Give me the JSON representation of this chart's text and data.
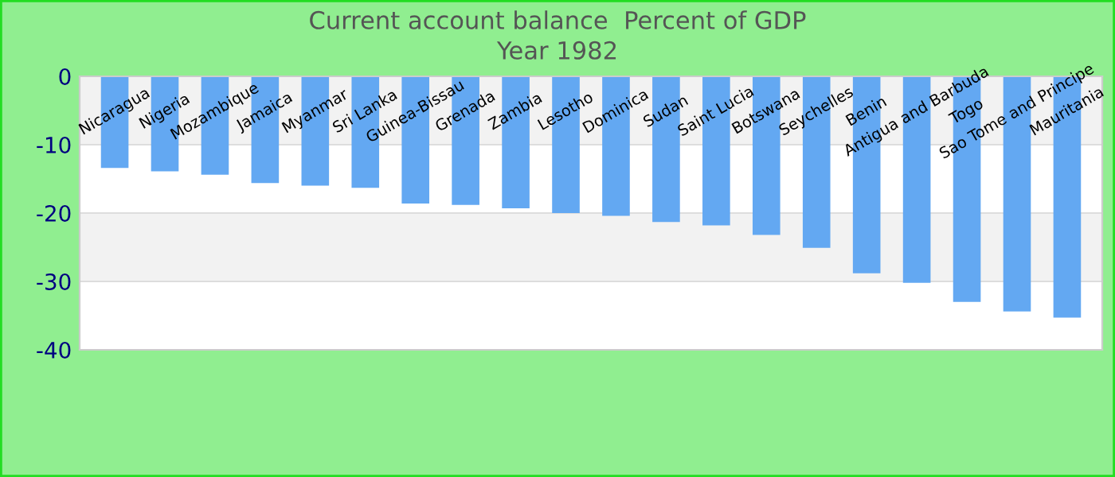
{
  "chart_data": {
    "type": "bar",
    "title": "Current account balance  Percent of GDP",
    "subtitle": "Year 1982",
    "categories": [
      "Nicaragua",
      "Nigeria",
      "Mozambique",
      "Jamaica",
      "Myanmar",
      "Sri Lanka",
      "Guinea-Bissau",
      "Grenada",
      "Zambia",
      "Lesotho",
      "Dominica",
      "Sudan",
      "Saint Lucia",
      "Botswana",
      "Seychelles",
      "Benin",
      "Antigua and Barbuda",
      "Togo",
      "Sao Tome and Principe",
      "Mauritania"
    ],
    "values": [
      -13.4,
      -13.9,
      -14.4,
      -15.6,
      -16.0,
      -16.3,
      -18.6,
      -18.8,
      -19.3,
      -20.0,
      -20.4,
      -21.3,
      -21.8,
      -23.2,
      -25.1,
      -28.8,
      -30.2,
      -33.0,
      -34.4,
      -35.3
    ],
    "color": "#63a8f2",
    "ylim": [
      -40,
      0
    ],
    "yticks": [
      -40,
      -30,
      -20,
      -10,
      0
    ],
    "grid": "y"
  }
}
